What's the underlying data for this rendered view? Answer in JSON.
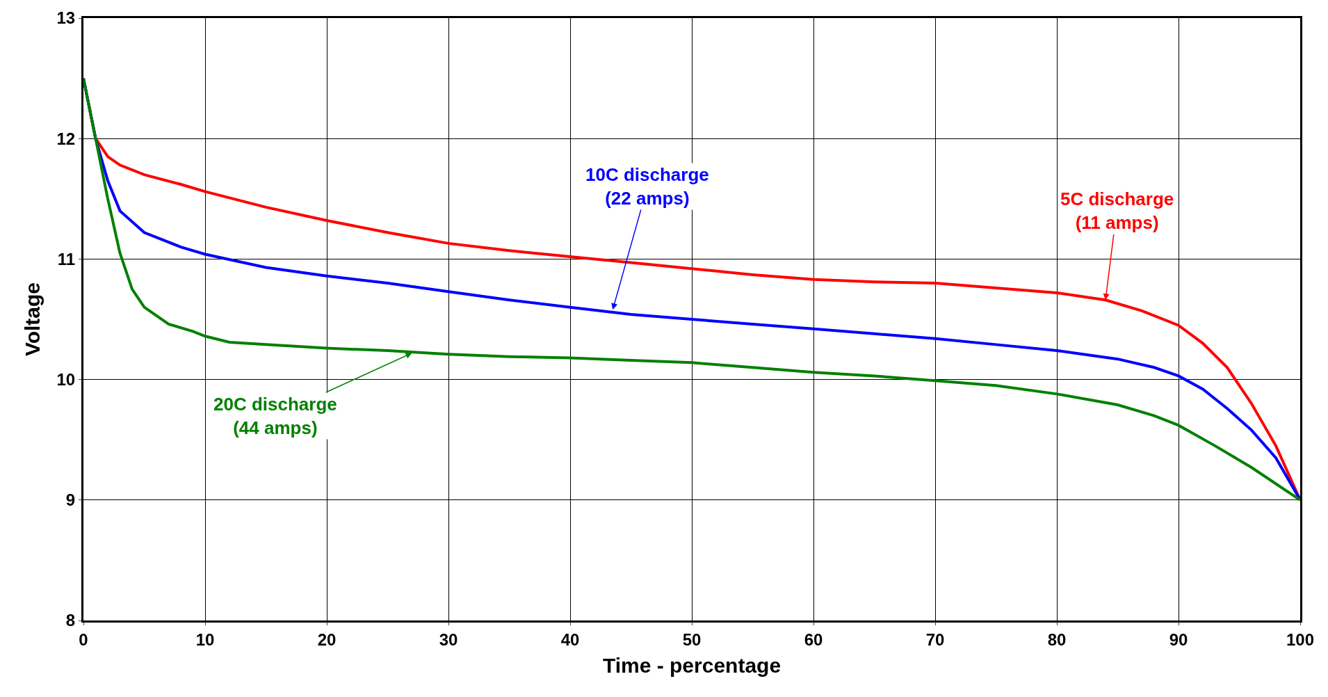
{
  "chart_data": {
    "type": "line",
    "xlabel": "Time - percentage",
    "ylabel": "Voltage",
    "xlim": [
      0,
      100
    ],
    "ylim": [
      8,
      13
    ],
    "xticks": [
      0,
      10,
      20,
      30,
      40,
      50,
      60,
      70,
      80,
      90,
      100
    ],
    "yticks": [
      8,
      9,
      10,
      11,
      12,
      13
    ],
    "grid": true,
    "marker": "none",
    "line_style": "solid",
    "series": [
      {
        "color": "#ff0000",
        "x": [
          0,
          1,
          2,
          3,
          5,
          8,
          10,
          15,
          20,
          25,
          30,
          35,
          40,
          45,
          50,
          55,
          60,
          65,
          70,
          75,
          80,
          84,
          87,
          90,
          92,
          94,
          96,
          98,
          100
        ],
        "values": [
          12.5,
          12.0,
          11.85,
          11.78,
          11.7,
          11.62,
          11.56,
          11.43,
          11.32,
          11.22,
          11.13,
          11.07,
          11.02,
          10.97,
          10.92,
          10.87,
          10.83,
          10.81,
          10.8,
          10.76,
          10.72,
          10.66,
          10.57,
          10.45,
          10.3,
          10.1,
          9.8,
          9.45,
          9.0
        ]
      },
      {
        "color": "#0000ff",
        "x": [
          0,
          1,
          2,
          3,
          5,
          8,
          10,
          15,
          20,
          25,
          30,
          35,
          40,
          45,
          50,
          55,
          60,
          65,
          70,
          75,
          80,
          85,
          88,
          90,
          92,
          94,
          96,
          98,
          100
        ],
        "values": [
          12.5,
          12.0,
          11.65,
          11.4,
          11.22,
          11.1,
          11.04,
          10.93,
          10.86,
          10.8,
          10.73,
          10.66,
          10.6,
          10.54,
          10.5,
          10.46,
          10.42,
          10.38,
          10.34,
          10.29,
          10.24,
          10.17,
          10.1,
          10.03,
          9.92,
          9.76,
          9.58,
          9.35,
          9.0
        ]
      },
      {
        "color": "#008000",
        "x": [
          0,
          1,
          2,
          3,
          4,
          5,
          7,
          9,
          10,
          12,
          15,
          20,
          25,
          30,
          35,
          40,
          45,
          50,
          55,
          60,
          65,
          70,
          75,
          80,
          85,
          88,
          90,
          93,
          96,
          100
        ],
        "values": [
          12.5,
          12.0,
          11.5,
          11.05,
          10.75,
          10.6,
          10.46,
          10.4,
          10.36,
          10.31,
          10.29,
          10.26,
          10.24,
          10.21,
          10.19,
          10.18,
          10.16,
          10.14,
          10.1,
          10.06,
          10.03,
          9.99,
          9.95,
          9.88,
          9.79,
          9.7,
          9.62,
          9.45,
          9.27,
          9.0
        ]
      }
    ],
    "annotations": [
      {
        "text": "5C discharge\n(11 amps)",
        "x": 84,
        "y": 10.66
      },
      {
        "text": "10C discharge\n(22 amps)",
        "x": 43.5,
        "y": 10.58
      },
      {
        "text": "20C discharge\n(44 amps)",
        "x": 27,
        "y": 10.22
      }
    ]
  }
}
